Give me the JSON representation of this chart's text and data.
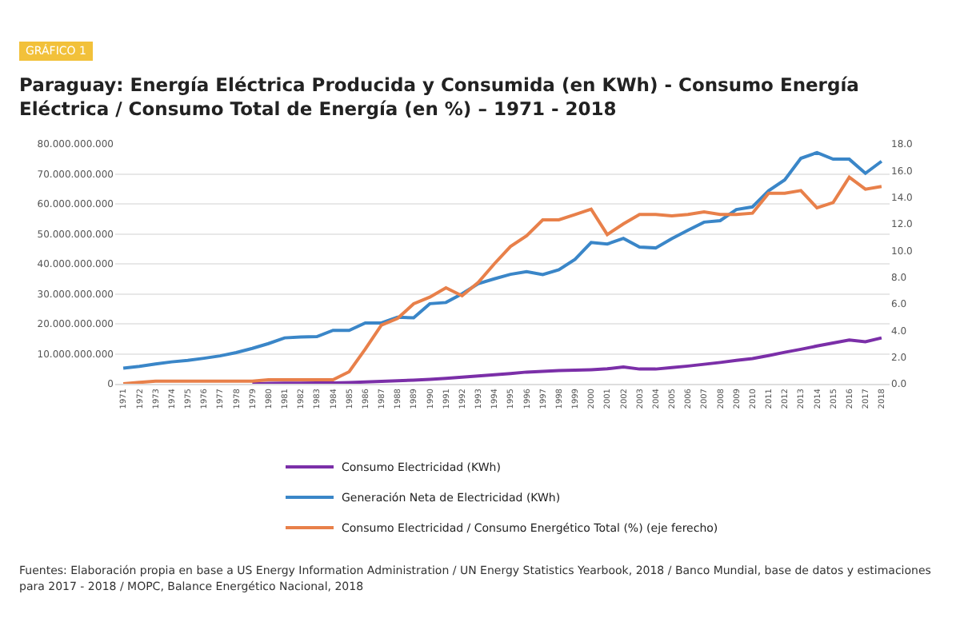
{
  "chart_data": {
    "type": "line",
    "title": "Paraguay: Energía Eléctrica Producida y Consumida (en KWh) - Consumo Energía Eléctrica / Consumo Total de Energía (en %) – 1971 - 2018",
    "annotations": [
      "GRÁFICO 1",
      "Fuentes: Elaboración propia en base a US Energy Information Administration / UN Energy Statistics Yearbook, 2018 / Banco Mundial, base de datos y estimaciones para 2017 - 2018 / MOPC, Balance Energético Nacional, 2018"
    ],
    "categories": [
      "1971",
      "1972",
      "1973",
      "1974",
      "1975",
      "1976",
      "1977",
      "1978",
      "1979",
      "1980",
      "1981",
      "1982",
      "1983",
      "1984",
      "1985",
      "1986",
      "1987",
      "1988",
      "1989",
      "1990",
      "1991",
      "1992",
      "1993",
      "1994",
      "1995",
      "1996",
      "1997",
      "1998",
      "1999",
      "2000",
      "2001",
      "2002",
      "2003",
      "2004",
      "2005",
      "2006",
      "2007",
      "2008",
      "2009",
      "2010",
      "2011",
      "2012",
      "2013",
      "2014",
      "2015",
      "2016",
      "2017",
      "2018"
    ],
    "series": [
      {
        "name": "Consumo Electricidad (KWh)",
        "color": "#7b2fa8",
        "values": [
          null,
          null,
          null,
          null,
          null,
          null,
          null,
          null,
          0,
          100000000,
          200000000,
          200000000,
          300000000,
          300000000,
          400000000,
          600000000,
          800000000,
          1000000000,
          1200000000,
          1500000000,
          1800000000,
          2200000000,
          2600000000,
          3000000000,
          3400000000,
          3900000000,
          4100000000,
          4400000000,
          4500000000,
          4700000000,
          5000000000,
          5600000000,
          4900000000,
          4900000000,
          5400000000,
          5900000000,
          6500000000,
          7100000000,
          7800000000,
          8400000000,
          9400000000,
          10500000000,
          11500000000,
          12600000000,
          13600000000,
          14600000000,
          14000000000,
          15300000000
        ]
      },
      {
        "name": "Generación Neta de Electricidad (KWh)",
        "color": "#3a86c8",
        "values": [
          5200000000,
          5800000000,
          6600000000,
          7300000000,
          7800000000,
          8500000000,
          9300000000,
          10400000000,
          11800000000,
          13400000000,
          15300000000,
          15600000000,
          15700000000,
          17800000000,
          17800000000,
          20300000000,
          20300000000,
          22200000000,
          22000000000,
          26700000000,
          27100000000,
          30000000000,
          33400000000,
          35000000000,
          36500000000,
          37400000000,
          36400000000,
          38000000000,
          41500000000,
          47100000000,
          46600000000,
          48500000000,
          45600000000,
          45300000000,
          48400000000,
          51200000000,
          53900000000,
          54400000000,
          58100000000,
          59000000000,
          64400000000,
          68000000000,
          75200000000,
          77100000000,
          74900000000,
          74900000000,
          70200000000,
          74200000000
        ]
      },
      {
        "name": "Consumo Electricidad / Consumo Energético Total (%) (eje ferecho)",
        "color": "#e8804a",
        "axis": "y2",
        "values": [
          0,
          0.1,
          0.2,
          0.2,
          0.2,
          0.2,
          0.2,
          0.2,
          0.2,
          0.3,
          0.3,
          0.3,
          0.3,
          0.3,
          0.9,
          2.6,
          4.4,
          4.9,
          6.0,
          6.5,
          7.2,
          6.6,
          7.6,
          9.0,
          10.3,
          11.1,
          12.3,
          12.3,
          12.7,
          13.1,
          11.2,
          12.0,
          12.7,
          12.7,
          12.6,
          12.7,
          12.9,
          12.7,
          12.7,
          12.8,
          14.3,
          14.3,
          14.5,
          13.2,
          13.6,
          15.5,
          14.6,
          14.8
        ]
      }
    ],
    "ylim": [
      0,
      80000000000
    ],
    "yticks": [
      {
        "value": 0,
        "label": "0"
      },
      {
        "value": 10000000000,
        "label": "10.000.000.000"
      },
      {
        "value": 20000000000,
        "label": "20.000.000.000"
      },
      {
        "value": 30000000000,
        "label": "30.000.000.000"
      },
      {
        "value": 40000000000,
        "label": "40.000.000.000"
      },
      {
        "value": 50000000000,
        "label": "50.000.000.000"
      },
      {
        "value": 60000000000,
        "label": "60.000.000.000"
      },
      {
        "value": 70000000000,
        "label": "70.000.000.000"
      },
      {
        "value": 80000000000,
        "label": "80.000.000.000"
      }
    ],
    "y2lim": [
      0,
      18
    ],
    "y2ticks": [
      {
        "value": 0,
        "label": "0.0"
      },
      {
        "value": 2,
        "label": "2.0"
      },
      {
        "value": 4,
        "label": "4.0"
      },
      {
        "value": 6,
        "label": "6.0"
      },
      {
        "value": 8,
        "label": "8.0"
      },
      {
        "value": 10,
        "label": "10.0"
      },
      {
        "value": 12,
        "label": "12.0"
      },
      {
        "value": 14,
        "label": "14.0"
      },
      {
        "value": 16,
        "label": "16.0"
      },
      {
        "value": 18,
        "label": "18.0"
      }
    ],
    "grid": "y",
    "legend": "bottom",
    "marker": "none",
    "line_style": "solid"
  }
}
